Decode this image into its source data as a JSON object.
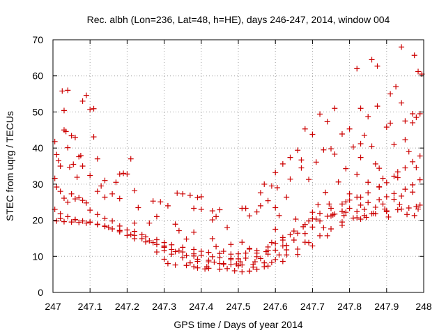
{
  "chart_data": {
    "type": "scatter",
    "title": "Rec. albh (Lon=236, Lat=48, h=HE), days 246-247, 2014, window 004",
    "xlabel": "GPS time / Days of year 2014",
    "ylabel": "STEC from uqrg / TECUs",
    "xlim": [
      247,
      248
    ],
    "ylim": [
      0,
      70
    ],
    "x_ticks": [
      "247",
      "247.1",
      "247.2",
      "247.3",
      "247.4",
      "247.5",
      "247.6",
      "247.7",
      "247.8",
      "247.9",
      "248"
    ],
    "y_ticks": [
      "0",
      "10",
      "20",
      "30",
      "40",
      "50",
      "60",
      "70"
    ],
    "x_tick_values": [
      247.0,
      247.1,
      247.2,
      247.3,
      247.4,
      247.5,
      247.6,
      247.7,
      247.8,
      247.9,
      248.0
    ],
    "y_tick_values": [
      0,
      10,
      20,
      30,
      40,
      50,
      60,
      70
    ],
    "grid": true,
    "marker": "plus",
    "color": "#cc0000",
    "series": [
      {
        "x": [
          247.005,
          247.01,
          247.015,
          247.02,
          247.025,
          247.03,
          247.035,
          247.04,
          247.05,
          247.06,
          247.07,
          247.08,
          247.09,
          247.1,
          247.11,
          247.005,
          247.01,
          247.02,
          247.03,
          247.04,
          247.05,
          247.06,
          247.07,
          247.08,
          247.09,
          247.1,
          247.12,
          247.14,
          247.16,
          247.18,
          247.2,
          247.22,
          247.25,
          247.28,
          247.3,
          247.32,
          247.35,
          247.38,
          247.4,
          247.42,
          247.45,
          247.48,
          247.5,
          247.52,
          247.55,
          247.58,
          247.6,
          247.62,
          247.65,
          247.68,
          247.7,
          247.72,
          247.75,
          247.78,
          247.8,
          247.82,
          247.85,
          247.88,
          247.9,
          247.92,
          247.95,
          247.97,
          247.99,
          247.005,
          247.02,
          247.04,
          247.06,
          247.08,
          247.1,
          247.12,
          247.14,
          247.16,
          247.18,
          247.2,
          247.22,
          247.25,
          247.28,
          247.3,
          247.32,
          247.35,
          247.38,
          247.4,
          247.43,
          247.45,
          247.48,
          247.5,
          247.52,
          247.55,
          247.58,
          247.6,
          247.62,
          247.65,
          247.68,
          247.7,
          247.72,
          247.75,
          247.78,
          247.8,
          247.83,
          247.85,
          247.88,
          247.9,
          247.92,
          247.95,
          247.97,
          247.99,
          247.01,
          247.03,
          247.05,
          247.07,
          247.09,
          247.12,
          247.15,
          247.18,
          247.21,
          247.24,
          247.27,
          247.3,
          247.33,
          247.36,
          247.39,
          247.42,
          247.45,
          247.48,
          247.51,
          247.54,
          247.57,
          247.6,
          247.63,
          247.66,
          247.69,
          247.72,
          247.75,
          247.78,
          247.81,
          247.84,
          247.87,
          247.9,
          247.93,
          247.96,
          247.99,
          247.02,
          247.06,
          247.1,
          247.14,
          247.18,
          247.22,
          247.26,
          247.3,
          247.34,
          247.38,
          247.42,
          247.46,
          247.5,
          247.54,
          247.58,
          247.62,
          247.66,
          247.7,
          247.74,
          247.78,
          247.82,
          247.86,
          247.9,
          247.94,
          247.98,
          247.03,
          247.08,
          247.13,
          247.18,
          247.23,
          247.28,
          247.33,
          247.38,
          247.43,
          247.48,
          247.53,
          247.58,
          247.63,
          247.68,
          247.73,
          247.78,
          247.83,
          247.88,
          247.93,
          247.98,
          247.04,
          247.11,
          247.19,
          247.27,
          247.35,
          247.43,
          247.51,
          247.59,
          247.67,
          247.75,
          247.83,
          247.91,
          247.97,
          247.3,
          247.31,
          247.33,
          247.36,
          247.38,
          247.39,
          247.41,
          247.42,
          247.45,
          247.47,
          247.49,
          247.51,
          247.53,
          247.55,
          247.57,
          247.59,
          247.61,
          247.63,
          247.66,
          247.69,
          247.71,
          247.74,
          247.76,
          247.79,
          247.82,
          247.84,
          247.87,
          247.89,
          247.92,
          247.94
        ],
        "y": [
          41.8,
          38.2,
          36.5,
          35.0,
          55.8,
          50.4,
          44.6,
          40.1,
          43.4,
          42.9,
          37.6,
          53.0,
          54.6,
          50.7,
          43.1,
          31.6,
          29.2,
          28.0,
          26.1,
          25.0,
          27.3,
          25.9,
          26.3,
          25.5,
          24.8,
          22.8,
          21.6,
          20.5,
          19.8,
          18.4,
          17.3,
          16.9,
          15.4,
          14.6,
          13.8,
          13.2,
          12.5,
          11.9,
          11.4,
          11.1,
          10.8,
          10.6,
          10.7,
          10.9,
          11.6,
          12.6,
          13.6,
          15.2,
          17.0,
          18.8,
          20.4,
          21.9,
          23.3,
          24.5,
          25.6,
          26.4,
          27.6,
          29.2,
          30.4,
          32.2,
          34.5,
          36.2,
          37.8,
          23.0,
          21.8,
          21.0,
          20.2,
          19.8,
          19.4,
          18.9,
          18.3,
          17.6,
          16.8,
          15.8,
          14.9,
          14.0,
          13.3,
          12.6,
          11.9,
          11.2,
          10.7,
          10.3,
          9.9,
          9.6,
          9.4,
          9.3,
          9.5,
          9.9,
          10.6,
          11.7,
          12.9,
          14.5,
          16.3,
          18.1,
          19.8,
          21.2,
          22.5,
          23.3,
          24.2,
          24.9,
          25.7,
          26.5,
          27.4,
          28.6,
          29.8,
          31.2,
          19.8,
          19.6,
          19.5,
          19.4,
          19.2,
          18.8,
          18.0,
          17.1,
          16.0,
          14.9,
          13.8,
          12.5,
          11.3,
          10.2,
          9.2,
          8.5,
          8.0,
          7.7,
          7.6,
          7.8,
          8.2,
          9.1,
          10.4,
          12.0,
          13.8,
          15.7,
          17.6,
          19.5,
          20.6,
          21.3,
          21.8,
          22.4,
          22.9,
          23.4,
          24.2,
          20.5,
          20.1,
          19.5,
          18.4,
          17.2,
          15.8,
          14.3,
          12.9,
          11.5,
          10.1,
          8.9,
          8.0,
          7.4,
          7.0,
          7.3,
          8.6,
          10.5,
          12.9,
          15.7,
          18.6,
          20.7,
          21.8,
          22.6,
          23.1,
          23.8,
          45.0,
          35.0,
          29.5,
          26.0,
          23.5,
          21.0,
          18.9,
          16.7,
          14.9,
          13.3,
          12.2,
          11.6,
          11.8,
          13.9,
          17.9,
          22.5,
          26.4,
          29.3,
          31.8,
          34.6,
          56.0,
          50.9,
          33.0,
          25.3,
          27.3,
          22.6,
          23.3,
          29.5,
          36.7,
          39.8,
          41.2,
          46.9,
          49.5,
          9.2,
          8.0,
          7.6,
          7.5,
          7.1,
          6.8,
          6.5,
          6.7,
          6.4,
          6.6,
          6.0,
          5.7,
          5.9,
          6.4,
          7.1,
          8.3,
          10.4,
          13.0,
          16.4,
          19.8,
          20.3,
          21.1,
          21.7,
          22.2,
          22.4,
          23.0,
          23.6,
          24.5,
          25.8,
          26.7
        ]
      }
    ],
    "points": [
      [
        247.82,
        62.0
      ],
      [
        247.86,
        64.5
      ],
      [
        247.875,
        62.7
      ],
      [
        247.94,
        68.0
      ],
      [
        247.975,
        65.7
      ],
      [
        247.985,
        61.2
      ],
      [
        247.995,
        60.5
      ],
      [
        247.91,
        55.0
      ],
      [
        247.925,
        57.0
      ],
      [
        247.94,
        52.5
      ],
      [
        247.95,
        47.5
      ],
      [
        247.97,
        47.0
      ],
      [
        247.98,
        48.5
      ],
      [
        247.99,
        49.5
      ],
      [
        247.76,
        51.0
      ],
      [
        247.83,
        51.0
      ],
      [
        247.85,
        48.7
      ],
      [
        247.875,
        51.6
      ],
      [
        247.72,
        49.4
      ],
      [
        247.74,
        47.3
      ],
      [
        247.8,
        45.3
      ],
      [
        247.9,
        45.8
      ],
      [
        247.7,
        43.8
      ],
      [
        247.78,
        43.9
      ],
      [
        247.84,
        43.5
      ],
      [
        247.86,
        40.5
      ],
      [
        247.92,
        41.0
      ],
      [
        247.95,
        42.3
      ],
      [
        247.68,
        45.3
      ],
      [
        247.66,
        39.4
      ],
      [
        247.64,
        37.4
      ],
      [
        247.62,
        35.6
      ],
      [
        247.67,
        34.5
      ],
      [
        247.71,
        36.1
      ],
      [
        247.73,
        39.5
      ],
      [
        247.76,
        38.3
      ],
      [
        247.79,
        34.3
      ],
      [
        247.81,
        40.3
      ],
      [
        247.83,
        37.4
      ],
      [
        247.87,
        35.6
      ],
      [
        247.89,
        31.6
      ],
      [
        247.93,
        33.4
      ],
      [
        247.96,
        39.0
      ],
      [
        247.6,
        33.2
      ],
      [
        247.57,
        30.0
      ],
      [
        247.56,
        27.6
      ],
      [
        247.58,
        25.4
      ],
      [
        247.605,
        29.0
      ],
      [
        247.63,
        26.4
      ],
      [
        247.64,
        31.4
      ],
      [
        247.69,
        31.3
      ],
      [
        247.735,
        27.7
      ],
      [
        247.77,
        30.6
      ],
      [
        247.8,
        27.3
      ],
      [
        247.82,
        32.7
      ],
      [
        247.85,
        30.5
      ],
      [
        247.88,
        34.4
      ],
      [
        247.97,
        27.8
      ],
      [
        247.055,
        35.5
      ],
      [
        247.045,
        34.7
      ],
      [
        247.065,
        31.9
      ],
      [
        247.075,
        37.9
      ],
      [
        247.1,
        32.4
      ],
      [
        247.12,
        37.0
      ],
      [
        247.14,
        31.0
      ],
      [
        247.17,
        30.5
      ],
      [
        247.18,
        32.8
      ],
      [
        247.2,
        32.8
      ],
      [
        247.21,
        37.0
      ],
      [
        247.22,
        28.2
      ],
      [
        247.16,
        27.3
      ],
      [
        247.14,
        26.4
      ],
      [
        247.12,
        28.0
      ],
      [
        247.29,
        25.1
      ],
      [
        247.31,
        24.0
      ],
      [
        247.335,
        27.5
      ],
      [
        247.37,
        26.9
      ],
      [
        247.39,
        26.3
      ],
      [
        247.4,
        26.5
      ],
      [
        247.38,
        23.3
      ],
      [
        247.4,
        23.0
      ],
      [
        247.43,
        20.1
      ],
      [
        247.45,
        22.9
      ],
      [
        247.44,
        21.0
      ],
      [
        247.47,
        18.0
      ],
      [
        247.52,
        23.3
      ],
      [
        247.53,
        21.2
      ],
      [
        247.55,
        22.3
      ],
      [
        247.56,
        24.0
      ],
      [
        247.6,
        23.5
      ],
      [
        247.61,
        21.3
      ],
      [
        247.51,
        13.9
      ],
      [
        247.53,
        12.0
      ],
      [
        247.55,
        10.9
      ],
      [
        247.505,
        8.5
      ],
      [
        247.495,
        7.9
      ],
      [
        247.48,
        9.1
      ],
      [
        247.46,
        11.4
      ],
      [
        247.44,
        12.7
      ],
      [
        247.36,
        14.8
      ],
      [
        247.34,
        17.1
      ],
      [
        247.26,
        19.2
      ],
      [
        247.24,
        16.0
      ],
      [
        247.22,
        19.2
      ],
      [
        247.28,
        11.2
      ],
      [
        247.3,
        11.6
      ],
      [
        247.32,
        10.6
      ],
      [
        247.35,
        9.6
      ],
      [
        247.37,
        8.2
      ],
      [
        247.39,
        8.6
      ],
      [
        247.415,
        7.1
      ],
      [
        247.435,
        8.4
      ],
      [
        247.46,
        7.8
      ],
      [
        247.53,
        5.9
      ],
      [
        247.545,
        8.5
      ],
      [
        247.56,
        9.4
      ],
      [
        247.575,
        11.3
      ],
      [
        247.59,
        13.8
      ],
      [
        247.6,
        17.5
      ],
      [
        247.62,
        14.5
      ],
      [
        247.64,
        16.0
      ],
      [
        247.655,
        20.3
      ],
      [
        247.675,
        18.2
      ],
      [
        247.7,
        22.2
      ],
      [
        247.715,
        24.3
      ],
      [
        247.745,
        24.5
      ],
      [
        247.755,
        21.5
      ],
      [
        247.785,
        21.3
      ],
      [
        247.79,
        25.1
      ],
      [
        247.83,
        20.3
      ],
      [
        247.845,
        20.8
      ],
      [
        247.865,
        21.9
      ],
      [
        247.895,
        23.1
      ],
      [
        247.905,
        20.9
      ],
      [
        247.935,
        24.4
      ],
      [
        247.955,
        21.6
      ],
      [
        247.975,
        21.3
      ],
      [
        247.985,
        23.1
      ]
    ]
  }
}
